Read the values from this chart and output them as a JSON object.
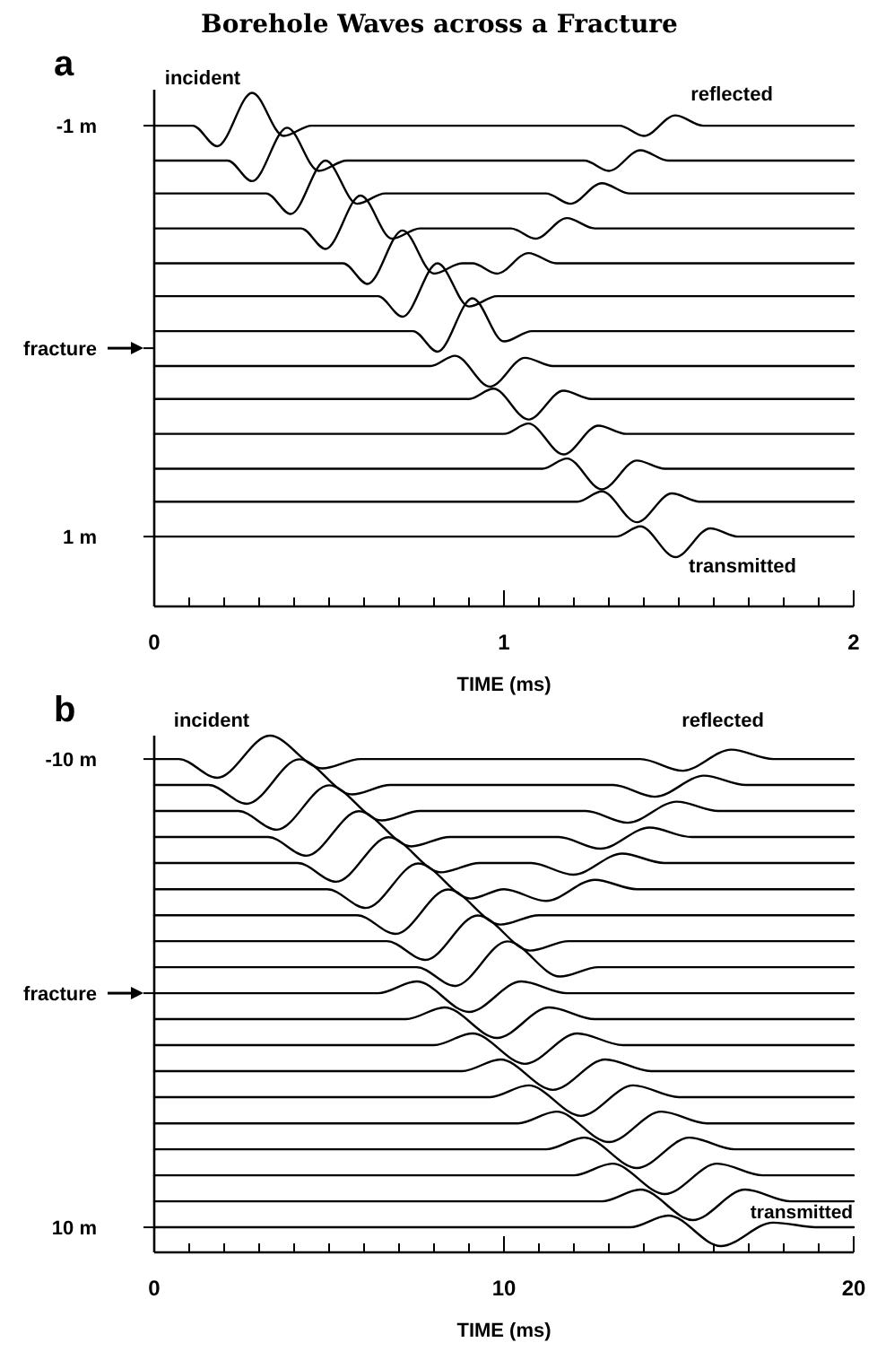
{
  "chart_data": [
    {
      "type": "line",
      "title": "Borehole Waves across a Fracture",
      "xlabel": "TIME (ms)",
      "annotations": [
        "a",
        "incident",
        "reflected",
        "transmitted"
      ],
      "xlim": [
        0,
        2
      ],
      "ylim": [
        1.34,
        -1.175
      ],
      "xticks": [
        0,
        {
          "value": 0.1,
          "label": null
        },
        {
          "value": 0.2,
          "label": null
        },
        {
          "value": 0.3,
          "label": null
        },
        {
          "value": 0.4,
          "label": null
        },
        {
          "value": 0.5,
          "label": null
        },
        {
          "value": 0.6,
          "label": null
        },
        {
          "value": 0.7,
          "label": null
        },
        {
          "value": 0.8,
          "label": null
        },
        {
          "value": 0.9,
          "label": null
        },
        1,
        {
          "value": 1.1,
          "label": null
        },
        {
          "value": 1.2,
          "label": null
        },
        {
          "value": 1.3,
          "label": null
        },
        {
          "value": 1.4,
          "label": null
        },
        {
          "value": 1.5,
          "label": null
        },
        {
          "value": 1.6,
          "label": null
        },
        {
          "value": 1.7,
          "label": null
        },
        {
          "value": 1.8,
          "label": null
        },
        {
          "value": 1.9,
          "label": null
        },
        2
      ],
      "yticks": [
        {
          "value": -1,
          "label": "-1 m"
        },
        {
          "value": 0.083,
          "label": "fracture"
        },
        {
          "value": 1,
          "label": "1 m"
        }
      ],
      "series": [
        {
          "color": "#000000",
          "x": [
            0,
            0.11,
            0.18,
            0.28,
            0.37,
            0.45,
            1.33,
            1.4,
            1.49,
            1.57,
            2
          ],
          "values": [
            -1,
            -1,
            -0.9,
            -1.16,
            -0.95,
            -1,
            -1,
            -0.95,
            -1.05,
            -1,
            -1
          ]
        },
        {
          "color": "#000000",
          "x": [
            0,
            0.21,
            0.28,
            0.38,
            0.47,
            0.55,
            1.23,
            1.3,
            1.39,
            1.47,
            2
          ],
          "values": [
            -0.83,
            -0.83,
            -0.73,
            -0.99,
            -0.78,
            -0.83,
            -0.83,
            -0.78,
            -0.88,
            -0.83,
            -0.83
          ]
        },
        {
          "color": "#000000",
          "x": [
            0,
            0.32,
            0.39,
            0.49,
            0.58,
            0.66,
            1.12,
            1.19,
            1.28,
            1.36,
            2
          ],
          "values": [
            -0.67,
            -0.67,
            -0.57,
            -0.83,
            -0.62,
            -0.67,
            -0.67,
            -0.62,
            -0.72,
            -0.67,
            -0.67
          ]
        },
        {
          "color": "#000000",
          "x": [
            0,
            0.42,
            0.49,
            0.59,
            0.68,
            0.76,
            1.02,
            1.09,
            1.18,
            1.26,
            2
          ],
          "values": [
            -0.5,
            -0.5,
            -0.4,
            -0.66,
            -0.45,
            -0.5,
            -0.5,
            -0.45,
            -0.55,
            -0.5,
            -0.5
          ]
        },
        {
          "color": "#000000",
          "x": [
            0,
            0.54,
            0.61,
            0.71,
            0.8,
            0.88,
            0.91,
            0.98,
            1.07,
            1.15,
            2
          ],
          "values": [
            -0.33,
            -0.33,
            -0.23,
            -0.49,
            -0.28,
            -0.33,
            -0.33,
            -0.28,
            -0.38,
            -0.33,
            -0.33
          ]
        },
        {
          "color": "#000000",
          "x": [
            0,
            0.64,
            0.71,
            0.81,
            0.9,
            0.98,
            2
          ],
          "values": [
            -0.17,
            -0.17,
            -0.07,
            -0.33,
            -0.12,
            -0.17,
            -0.17
          ]
        },
        {
          "color": "#000000",
          "x": [
            0,
            0.74,
            0.81,
            0.91,
            1.0,
            1.08,
            2
          ],
          "values": [
            0,
            0,
            0.1,
            -0.16,
            0.05,
            0,
            0
          ]
        },
        {
          "color": "#000000",
          "x": [
            0,
            0.79,
            0.86,
            0.96,
            1.06,
            1.14,
            2
          ],
          "values": [
            0.17,
            0.17,
            0.12,
            0.27,
            0.13,
            0.17,
            0.17
          ]
        },
        {
          "color": "#000000",
          "x": [
            0,
            0.9,
            0.97,
            1.07,
            1.17,
            1.25,
            2
          ],
          "values": [
            0.33,
            0.33,
            0.28,
            0.43,
            0.29,
            0.33,
            0.33
          ]
        },
        {
          "color": "#000000",
          "x": [
            0,
            1.0,
            1.07,
            1.17,
            1.27,
            1.35,
            2
          ],
          "values": [
            0.5,
            0.5,
            0.45,
            0.6,
            0.46,
            0.5,
            0.5
          ]
        },
        {
          "color": "#000000",
          "x": [
            0,
            1.11,
            1.18,
            1.28,
            1.38,
            1.46,
            2
          ],
          "values": [
            0.67,
            0.67,
            0.62,
            0.77,
            0.63,
            0.67,
            0.67
          ]
        },
        {
          "color": "#000000",
          "x": [
            0,
            1.21,
            1.28,
            1.38,
            1.48,
            1.56,
            2
          ],
          "values": [
            0.83,
            0.83,
            0.78,
            0.93,
            0.79,
            0.83,
            0.83
          ]
        },
        {
          "color": "#000000",
          "x": [
            0,
            1.32,
            1.39,
            1.49,
            1.59,
            1.67,
            2
          ],
          "values": [
            1,
            1,
            0.95,
            1.1,
            0.96,
            1,
            1
          ]
        }
      ]
    },
    {
      "type": "line",
      "xlabel": "TIME (ms)",
      "annotations": [
        "b",
        "incident",
        "reflected",
        "transmitted"
      ],
      "xlim": [
        0,
        20
      ],
      "ylim": [
        11.07,
        -11
      ],
      "xticks": [
        0,
        {
          "value": 1,
          "label": null
        },
        {
          "value": 2,
          "label": null
        },
        {
          "value": 3,
          "label": null
        },
        {
          "value": 4,
          "label": null
        },
        {
          "value": 5,
          "label": null
        },
        {
          "value": 6,
          "label": null
        },
        {
          "value": 7,
          "label": null
        },
        {
          "value": 8,
          "label": null
        },
        {
          "value": 9,
          "label": null
        },
        10,
        {
          "value": 11,
          "label": null
        },
        {
          "value": 12,
          "label": null
        },
        {
          "value": 13,
          "label": null
        },
        {
          "value": 14,
          "label": null
        },
        {
          "value": 15,
          "label": null
        },
        {
          "value": 16,
          "label": null
        },
        {
          "value": 17,
          "label": null
        },
        {
          "value": 18,
          "label": null
        },
        {
          "value": 19,
          "label": null
        },
        20
      ],
      "yticks": [
        {
          "value": -10,
          "label": "-10 m"
        },
        {
          "value": 0,
          "label": "fracture"
        },
        {
          "value": 10,
          "label": "10 m"
        }
      ],
      "series": [
        {
          "color": "#000000",
          "x": [
            0,
            0.7,
            1.8,
            3.3,
            4.8,
            5.9,
            13.9,
            15.1,
            16.5,
            17.7,
            20
          ],
          "values": [
            -10,
            -10,
            -9.2,
            -11,
            -9.6,
            -10,
            -10,
            -9.5,
            -10.4,
            -10,
            -10
          ]
        },
        {
          "color": "#000000",
          "x": [
            0,
            1.55,
            2.65,
            4.15,
            5.65,
            6.75,
            13.12,
            14.32,
            15.72,
            16.92,
            20
          ],
          "values": [
            -8.89,
            -8.89,
            -8.09,
            -9.99,
            -8.49,
            -8.89,
            -8.89,
            -8.39,
            -9.29,
            -8.89,
            -8.89
          ]
        },
        {
          "color": "#000000",
          "x": [
            0,
            2.4,
            3.5,
            5.0,
            6.5,
            7.6,
            12.34,
            13.54,
            14.94,
            16.14,
            20
          ],
          "values": [
            -7.78,
            -7.78,
            -6.98,
            -8.88,
            -7.38,
            -7.78,
            -7.78,
            -7.28,
            -8.18,
            -7.78,
            -7.78
          ]
        },
        {
          "color": "#000000",
          "x": [
            0,
            3.25,
            4.35,
            5.85,
            7.35,
            8.45,
            11.56,
            12.76,
            14.16,
            15.36,
            20
          ],
          "values": [
            -6.67,
            -6.67,
            -5.87,
            -7.77,
            -6.27,
            -6.67,
            -6.67,
            -6.17,
            -7.07,
            -6.67,
            -6.67
          ]
        },
        {
          "color": "#000000",
          "x": [
            0,
            4.1,
            5.2,
            6.7,
            8.2,
            9.3,
            10.78,
            11.98,
            13.38,
            14.58,
            20
          ],
          "values": [
            -5.56,
            -5.56,
            -4.76,
            -6.66,
            -5.16,
            -5.56,
            -5.56,
            -5.06,
            -5.96,
            -5.56,
            -5.56
          ]
        },
        {
          "color": "#000000",
          "x": [
            0,
            4.95,
            6.05,
            7.55,
            9.05,
            10.0,
            11.2,
            12.6,
            13.8,
            20
          ],
          "values": [
            -4.44,
            -4.44,
            -3.64,
            -5.54,
            -4.04,
            -4.44,
            -3.94,
            -4.84,
            -4.44,
            -4.44
          ]
        },
        {
          "color": "#000000",
          "x": [
            0,
            5.8,
            6.9,
            8.4,
            9.9,
            11.0,
            20
          ],
          "values": [
            -3.33,
            -3.33,
            -2.53,
            -4.43,
            -2.93,
            -3.33,
            -3.33
          ]
        },
        {
          "color": "#000000",
          "x": [
            0,
            6.65,
            7.75,
            9.25,
            10.75,
            11.85,
            20
          ],
          "values": [
            -2.22,
            -2.22,
            -1.42,
            -3.32,
            -1.82,
            -2.22,
            -2.22
          ]
        },
        {
          "color": "#000000",
          "x": [
            0,
            7.5,
            8.6,
            10.1,
            11.6,
            12.7,
            20
          ],
          "values": [
            -1.11,
            -1.11,
            -0.31,
            -2.21,
            -0.71,
            -1.11,
            -1.11
          ]
        },
        {
          "color": "#000000",
          "x": [
            0,
            6.4,
            7.5,
            9.0,
            10.5,
            11.8,
            20
          ],
          "values": [
            0,
            0,
            -0.5,
            0.8,
            -0.5,
            0,
            0
          ]
        },
        {
          "color": "#000000",
          "x": [
            0,
            7.2,
            8.3,
            9.8,
            11.3,
            12.6,
            20
          ],
          "values": [
            1.11,
            1.11,
            0.61,
            1.91,
            0.61,
            1.11,
            1.11
          ]
        },
        {
          "color": "#000000",
          "x": [
            0,
            8.0,
            9.1,
            10.6,
            12.1,
            13.4,
            20
          ],
          "values": [
            2.22,
            2.22,
            1.72,
            3.02,
            1.72,
            2.22,
            2.22
          ]
        },
        {
          "color": "#000000",
          "x": [
            0,
            8.8,
            9.9,
            11.4,
            12.9,
            14.2,
            20
          ],
          "values": [
            3.33,
            3.33,
            2.83,
            4.13,
            2.83,
            3.33,
            3.33
          ]
        },
        {
          "color": "#000000",
          "x": [
            0,
            9.6,
            10.7,
            12.2,
            13.7,
            15.0,
            20
          ],
          "values": [
            4.44,
            4.44,
            3.94,
            5.24,
            3.94,
            4.44,
            4.44
          ]
        },
        {
          "color": "#000000",
          "x": [
            0,
            10.4,
            11.5,
            13.0,
            14.5,
            15.8,
            20
          ],
          "values": [
            5.56,
            5.56,
            5.06,
            6.36,
            5.06,
            5.56,
            5.56
          ]
        },
        {
          "color": "#000000",
          "x": [
            0,
            11.2,
            12.3,
            13.8,
            15.3,
            16.6,
            20
          ],
          "values": [
            6.67,
            6.67,
            6.17,
            7.47,
            6.17,
            6.67,
            6.67
          ]
        },
        {
          "color": "#000000",
          "x": [
            0,
            12.0,
            13.1,
            14.6,
            16.1,
            17.4,
            20
          ],
          "values": [
            7.78,
            7.78,
            7.28,
            8.58,
            7.28,
            7.78,
            7.78
          ]
        },
        {
          "color": "#000000",
          "x": [
            0,
            12.8,
            13.9,
            15.4,
            16.9,
            18.2,
            20
          ],
          "values": [
            8.89,
            8.89,
            8.39,
            9.69,
            8.39,
            8.89,
            8.89
          ]
        },
        {
          "color": "#000000",
          "x": [
            0,
            13.6,
            14.7,
            16.2,
            17.7,
            19.0,
            20
          ],
          "values": [
            10,
            10,
            9.5,
            10.8,
            9.8,
            10,
            10
          ]
        }
      ]
    }
  ]
}
